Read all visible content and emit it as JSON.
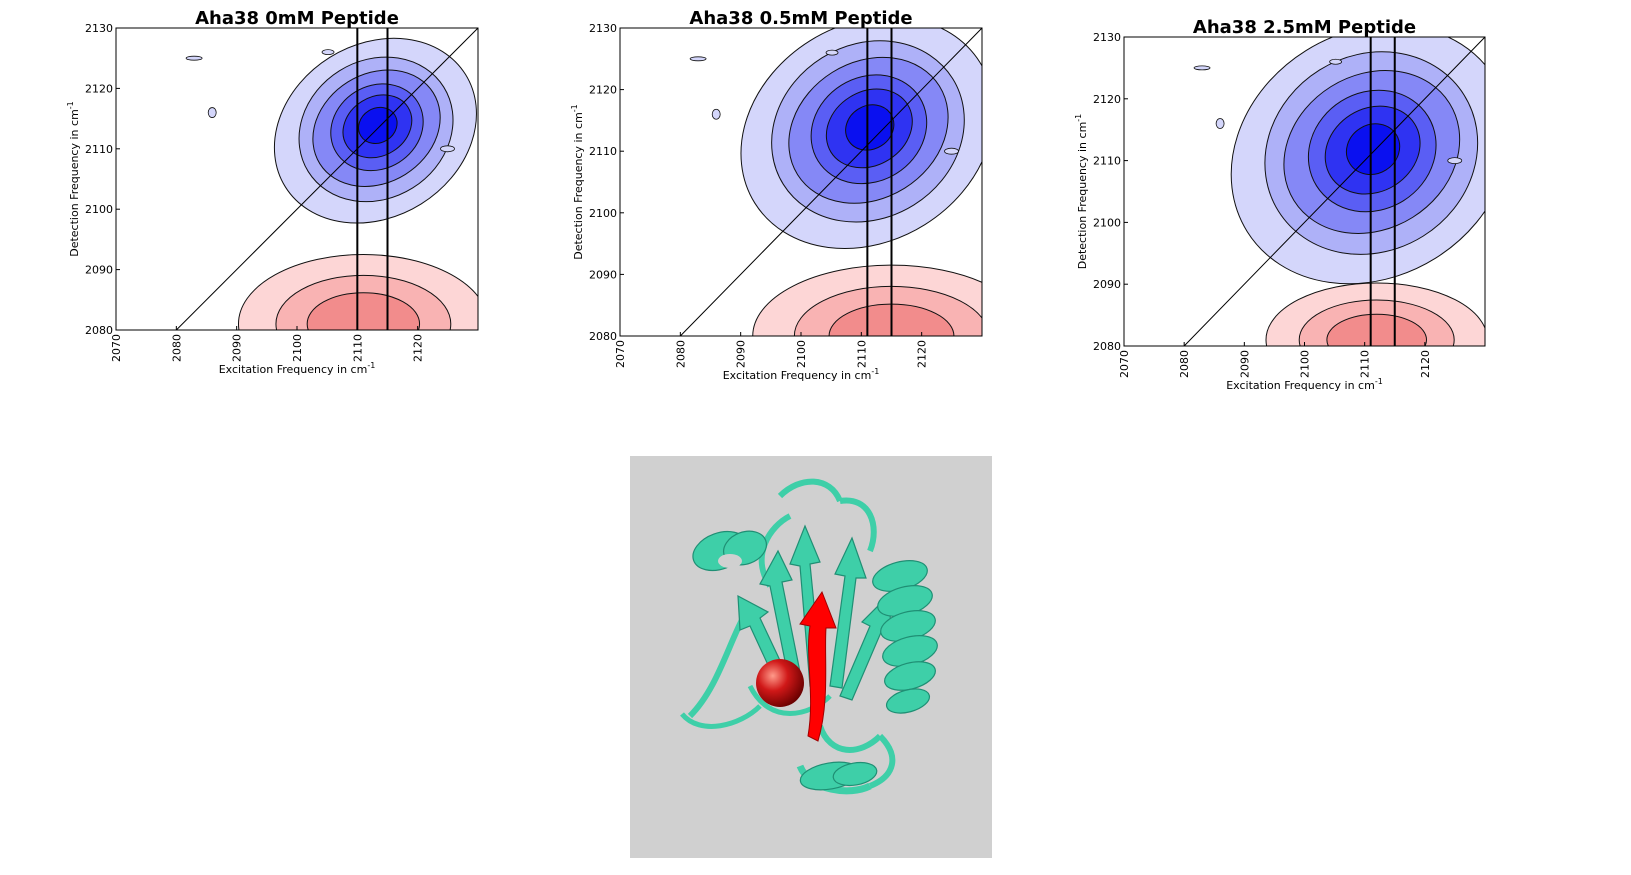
{
  "chart_data": [
    {
      "type": "heatmap",
      "subtype": "2D-IR contour plot",
      "title": "Aha38 0mM Peptide",
      "xlabel": "Excitation Frequency in cm",
      "ylabel": "Detection Frequency in cm",
      "unit_superscript": "-1",
      "xlim": [
        2070,
        2130
      ],
      "ylim": [
        2080,
        2130
      ],
      "xticks": [
        "2070",
        "2080",
        "2090",
        "2100",
        "2110",
        "2120"
      ],
      "yticks": [
        "2080",
        "2090",
        "2100",
        "2110",
        "2120",
        "2130"
      ],
      "vertical_lines": [
        2110,
        2115
      ],
      "diagonal": true,
      "positive_peak": {
        "x": 2113,
        "y": 2113,
        "sx": 8,
        "sy": 6.5,
        "tilt": 0.7
      },
      "negative_peak": {
        "x": 2111,
        "y": 2081,
        "sx": 9,
        "sy": 5
      },
      "colors": {
        "positive": "#0000ff",
        "negative": "#f08080"
      }
    },
    {
      "type": "heatmap",
      "subtype": "2D-IR contour plot",
      "title": "Aha38 0.5mM Peptide",
      "xlabel": "Excitation Frequency in cm",
      "ylabel": "Detection Frequency in cm",
      "unit_superscript": "-1",
      "xlim": [
        2070,
        2130
      ],
      "ylim": [
        2080,
        2130
      ],
      "xticks": [
        "2070",
        "2080",
        "2090",
        "2100",
        "2110",
        "2120"
      ],
      "yticks": [
        "2080",
        "2090",
        "2100",
        "2110",
        "2120",
        "2130"
      ],
      "vertical_lines": [
        2111,
        2115
      ],
      "diagonal": true,
      "positive_peak": {
        "x": 2111,
        "y": 2113,
        "sx": 10,
        "sy": 8,
        "tilt": 0.7
      },
      "negative_peak": {
        "x": 2115,
        "y": 2080,
        "sx": 10,
        "sy": 5
      },
      "colors": {
        "positive": "#0000ff",
        "negative": "#f08080"
      }
    },
    {
      "type": "heatmap",
      "subtype": "2D-IR contour plot",
      "title": "Aha38 2.5mM Peptide",
      "xlabel": "Excitation Frequency in cm",
      "ylabel": "Detection Frequency in cm",
      "unit_superscript": "-1",
      "xlim": [
        2070,
        2130
      ],
      "ylim": [
        2080,
        2130
      ],
      "xticks": [
        "2070",
        "2080",
        "2090",
        "2100",
        "2110",
        "2120"
      ],
      "yticks": [
        "2080",
        "2090",
        "2100",
        "2110",
        "2120",
        "2130"
      ],
      "vertical_lines": [
        2111,
        2115
      ],
      "diagonal": true,
      "positive_peak": {
        "x": 2111,
        "y": 2111,
        "sx": 11,
        "sy": 9,
        "tilt": 0.7
      },
      "negative_peak": {
        "x": 2112,
        "y": 2081,
        "sx": 8,
        "sy": 4
      },
      "colors": {
        "positive": "#0000ff",
        "negative": "#f08080"
      }
    }
  ],
  "protein_image": {
    "background": "#d0d0d0",
    "ribbon_color": "#3ecfa8",
    "highlight_color": "#ff0000",
    "ion_color": "#cc0000"
  }
}
